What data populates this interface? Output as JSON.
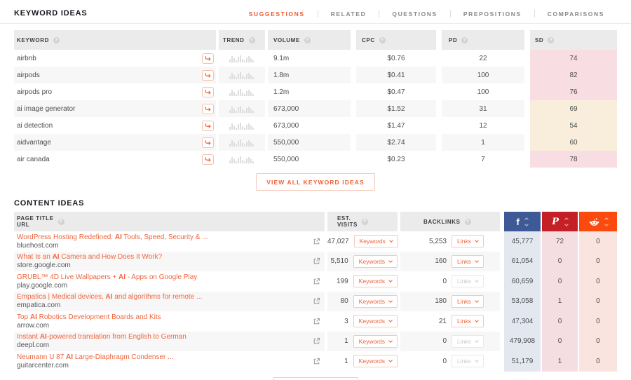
{
  "header": {
    "title": "KEYWORD IDEAS",
    "tabs": [
      {
        "label": "SUGGESTIONS",
        "active": true
      },
      {
        "label": "RELATED",
        "active": false
      },
      {
        "label": "QUESTIONS",
        "active": false
      },
      {
        "label": "PREPOSITIONS",
        "active": false
      },
      {
        "label": "COMPARISONS",
        "active": false
      }
    ]
  },
  "keyword_table": {
    "columns": {
      "keyword": "KEYWORD",
      "trend": "TREND",
      "volume": "VOLUME",
      "cpc": "CPC",
      "pd": "PD",
      "sd": "SD"
    },
    "rows": [
      {
        "keyword": "airbnb",
        "volume": "9.1m",
        "cpc": "$0.76",
        "pd": "22",
        "sd": "74",
        "sd_level": "hi"
      },
      {
        "keyword": "airpods",
        "volume": "1.8m",
        "cpc": "$0.41",
        "pd": "100",
        "sd": "82",
        "sd_level": "hi"
      },
      {
        "keyword": "airpods pro",
        "volume": "1.2m",
        "cpc": "$0.47",
        "pd": "100",
        "sd": "76",
        "sd_level": "hi"
      },
      {
        "keyword": "ai image generator",
        "volume": "673,000",
        "cpc": "$1.52",
        "pd": "31",
        "sd": "69",
        "sd_level": "md"
      },
      {
        "keyword": "ai detection",
        "volume": "673,000",
        "cpc": "$1.47",
        "pd": "12",
        "sd": "54",
        "sd_level": "md"
      },
      {
        "keyword": "aidvantage",
        "volume": "550,000",
        "cpc": "$2.74",
        "pd": "1",
        "sd": "60",
        "sd_level": "md"
      },
      {
        "keyword": "air canada",
        "volume": "550,000",
        "cpc": "$0.23",
        "pd": "7",
        "sd": "78",
        "sd_level": "hi"
      }
    ]
  },
  "view_all_button_label": "VIEW ALL KEYWORD IDEAS",
  "content_table": {
    "title": "CONTENT IDEAS",
    "columns": {
      "page_title_line1": "PAGE TITLE",
      "page_title_line2": "URL",
      "est_visits_line1": "EST.",
      "est_visits_line2": "VISITS",
      "backlinks": "BACKLINKS",
      "social": [
        "facebook",
        "pinterest",
        "reddit"
      ]
    },
    "keywords_button_label": "Keywords",
    "links_button_label": "Links",
    "rows": [
      {
        "title_parts": [
          {
            "text": "WordPress Hosting Redefined: "
          },
          {
            "text": "AI",
            "bold": true
          },
          {
            "text": " Tools, Speed, Security & ..."
          }
        ],
        "url": "bluehost.com",
        "visits": "47,027",
        "backlinks": "5,253",
        "links_enabled": true,
        "facebook": "45,777",
        "pinterest": "72",
        "reddit": "0"
      },
      {
        "title_parts": [
          {
            "text": "What Is an "
          },
          {
            "text": "AI",
            "bold": true
          },
          {
            "text": " Camera and How Does It Work?"
          }
        ],
        "url": "store.google.com",
        "visits": "5,510",
        "backlinks": "160",
        "links_enabled": true,
        "facebook": "61,054",
        "pinterest": "0",
        "reddit": "0"
      },
      {
        "title_parts": [
          {
            "text": "GRUBL™ 4D Live Wallpapers + "
          },
          {
            "text": "AI",
            "bold": true
          },
          {
            "text": " - Apps on Google Play"
          }
        ],
        "url": "play.google.com",
        "visits": "199",
        "backlinks": "0",
        "links_enabled": false,
        "facebook": "60,659",
        "pinterest": "0",
        "reddit": "0"
      },
      {
        "title_parts": [
          {
            "text": "Empatica | Medical devices, "
          },
          {
            "text": "AI",
            "bold": true
          },
          {
            "text": " and algorithms for remote ..."
          }
        ],
        "url": "empatica.com",
        "visits": "80",
        "backlinks": "180",
        "links_enabled": true,
        "facebook": "53,058",
        "pinterest": "1",
        "reddit": "0"
      },
      {
        "title_parts": [
          {
            "text": "Top "
          },
          {
            "text": "AI",
            "bold": true
          },
          {
            "text": " Robotics Development Boards and Kits"
          }
        ],
        "url": "arrow.com",
        "visits": "3",
        "backlinks": "21",
        "links_enabled": true,
        "facebook": "47,304",
        "pinterest": "0",
        "reddit": "0"
      },
      {
        "title_parts": [
          {
            "text": "Instant "
          },
          {
            "text": "AI",
            "bold": true
          },
          {
            "text": "-powered translation from English to German"
          }
        ],
        "url": "deepl.com",
        "visits": "1",
        "backlinks": "0",
        "links_enabled": false,
        "facebook": "479,908",
        "pinterest": "0",
        "reddit": "0"
      },
      {
        "title_parts": [
          {
            "text": "Neumann U 87 "
          },
          {
            "text": "AI",
            "bold": true
          },
          {
            "text": " Large-Diaphragm Condenser ..."
          }
        ],
        "url": "guitarcenter.com",
        "visits": "1",
        "backlinks": "0",
        "links_enabled": false,
        "facebook": "51,179",
        "pinterest": "1",
        "reddit": "0"
      }
    ]
  },
  "colors": {
    "accent": "#ee5a31",
    "facebook_header": "#3d5a96",
    "pinterest_header": "#c42026",
    "reddit_header": "#fb4a10",
    "sd_high_bg": "#f8dee2",
    "sd_medium_bg": "#f8eedb",
    "facebook_cell_bg": "#e3e8f0",
    "pinterest_cell_bg": "#f5dee1",
    "reddit_cell_bg": "#f9e4df"
  }
}
